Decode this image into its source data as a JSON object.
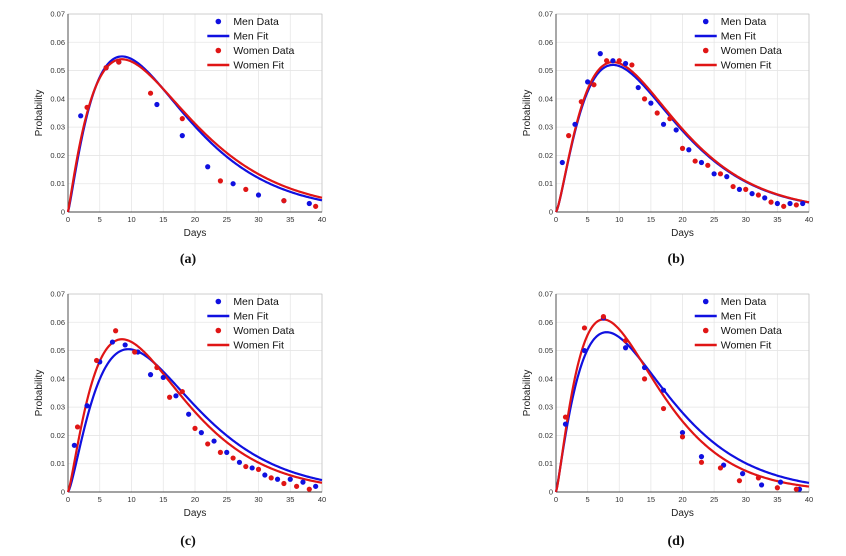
{
  "colors": {
    "men": "#1010e0",
    "women": "#e01515",
    "grid": "#e6e6e6",
    "axis": "#444444"
  },
  "chart_data": [
    {
      "type": "line",
      "panel": "(a)",
      "xlabel": "Days",
      "ylabel": "Probability",
      "xlim": [
        0,
        40
      ],
      "ylim": [
        0,
        0.07
      ],
      "xticks": [
        "0",
        "5",
        "10",
        "15",
        "20",
        "25",
        "30",
        "35",
        "40"
      ],
      "yticks": [
        "0",
        "0.01",
        "0.02",
        "0.03",
        "0.04",
        "0.05",
        "0.06",
        "0.07"
      ],
      "legend": [
        "Men Data",
        "Men Fit",
        "Women Data",
        "Women Fit"
      ],
      "legend_position": "top-right",
      "grid": true,
      "series": [
        {
          "name": "Men Data",
          "kind": "scatter",
          "x": [
            2,
            6,
            8,
            14,
            18,
            22,
            26,
            30,
            34,
            38
          ],
          "y": [
            0.034,
            0.051,
            0.053,
            0.038,
            0.027,
            0.016,
            0.01,
            0.006,
            0.004,
            0.003
          ]
        },
        {
          "name": "Women Data",
          "kind": "scatter",
          "x": [
            3,
            6,
            8,
            13,
            18,
            24,
            28,
            34,
            39
          ],
          "y": [
            0.037,
            0.051,
            0.053,
            0.042,
            0.033,
            0.011,
            0.008,
            0.004,
            0.002
          ]
        },
        {
          "name": "Men Fit",
          "kind": "fit",
          "peak_x": 8.5,
          "peak_y": 0.055,
          "shape": 2.2,
          "shift": 0
        },
        {
          "name": "Women Fit",
          "kind": "fit",
          "peak_x": 8.5,
          "peak_y": 0.054,
          "shape": 2.1,
          "shift": 0
        }
      ]
    },
    {
      "type": "line",
      "panel": "(b)",
      "xlabel": "Days",
      "ylabel": "Probability",
      "xlim": [
        0,
        40
      ],
      "ylim": [
        0,
        0.07
      ],
      "xticks": [
        "0",
        "5",
        "10",
        "15",
        "20",
        "25",
        "30",
        "35",
        "40"
      ],
      "yticks": [
        "0",
        "0.01",
        "0.02",
        "0.03",
        "0.04",
        "0.05",
        "0.06",
        "0.07"
      ],
      "legend": [
        "Men Data",
        "Men Fit",
        "Women Data",
        "Women Fit"
      ],
      "legend_position": "top-right",
      "grid": true,
      "series": [
        {
          "name": "Men Data",
          "kind": "scatter",
          "x": [
            1,
            3,
            5,
            7,
            9,
            11,
            13,
            15,
            17,
            19,
            21,
            23,
            25,
            27,
            29,
            31,
            33,
            35,
            37,
            39
          ],
          "y": [
            0.0175,
            0.031,
            0.046,
            0.056,
            0.0535,
            0.0525,
            0.044,
            0.0385,
            0.031,
            0.029,
            0.022,
            0.0175,
            0.0135,
            0.0125,
            0.008,
            0.0065,
            0.005,
            0.003,
            0.003,
            0.003
          ]
        },
        {
          "name": "Women Data",
          "kind": "scatter",
          "x": [
            2,
            4,
            6,
            8,
            10,
            12,
            14,
            16,
            18,
            20,
            22,
            24,
            26,
            28,
            30,
            32,
            34,
            36,
            38
          ],
          "y": [
            0.027,
            0.039,
            0.045,
            0.0535,
            0.0535,
            0.052,
            0.04,
            0.035,
            0.033,
            0.0225,
            0.018,
            0.0165,
            0.0135,
            0.009,
            0.008,
            0.006,
            0.0035,
            0.002,
            0.0025
          ]
        },
        {
          "name": "Men Fit",
          "kind": "fit",
          "peak_x": 9.0,
          "peak_y": 0.052,
          "shape": 2.4,
          "shift": 0
        },
        {
          "name": "Women Fit",
          "kind": "fit",
          "peak_x": 9.0,
          "peak_y": 0.053,
          "shape": 2.4,
          "shift": 0
        }
      ]
    },
    {
      "type": "line",
      "panel": "(c)",
      "xlabel": "Days",
      "ylabel": "Probability",
      "xlim": [
        0,
        40
      ],
      "ylim": [
        0,
        0.07
      ],
      "xticks": [
        "0",
        "5",
        "10",
        "15",
        "20",
        "25",
        "30",
        "35",
        "40"
      ],
      "yticks": [
        "0",
        "0.01",
        "0.02",
        "0.03",
        "0.04",
        "0.05",
        "0.06",
        "0.07"
      ],
      "legend": [
        "Men Data",
        "Men Fit",
        "Women Data",
        "Women Fit"
      ],
      "legend_position": "top-right",
      "grid": true,
      "series": [
        {
          "name": "Men Data",
          "kind": "scatter",
          "x": [
            1,
            3,
            5,
            7,
            9,
            11,
            13,
            15,
            17,
            19,
            21,
            23,
            25,
            27,
            29,
            31,
            33,
            35,
            37,
            39
          ],
          "y": [
            0.0165,
            0.0305,
            0.046,
            0.053,
            0.052,
            0.0495,
            0.0415,
            0.0405,
            0.034,
            0.0275,
            0.021,
            0.018,
            0.014,
            0.0105,
            0.0085,
            0.006,
            0.0045,
            0.0045,
            0.0035,
            0.002
          ]
        },
        {
          "name": "Women Data",
          "kind": "scatter",
          "x": [
            1.5,
            4.5,
            7.5,
            10.5,
            14,
            16,
            18,
            20,
            22,
            24,
            26,
            28,
            30,
            32,
            34,
            36,
            38
          ],
          "y": [
            0.023,
            0.0465,
            0.057,
            0.0495,
            0.044,
            0.0335,
            0.0355,
            0.0225,
            0.017,
            0.014,
            0.012,
            0.009,
            0.008,
            0.005,
            0.003,
            0.002,
            0.001
          ]
        },
        {
          "name": "Men Fit",
          "kind": "fit",
          "peak_x": 9.5,
          "peak_y": 0.0505,
          "shape": 2.4,
          "shift": 0
        },
        {
          "name": "Women Fit",
          "kind": "fit",
          "peak_x": 8.5,
          "peak_y": 0.054,
          "shape": 2.3,
          "shift": 0
        }
      ]
    },
    {
      "type": "line",
      "panel": "(d)",
      "xlabel": "Days",
      "ylabel": "Probability",
      "xlim": [
        0,
        40
      ],
      "ylim": [
        0,
        0.07
      ],
      "xticks": [
        "0",
        "5",
        "10",
        "15",
        "20",
        "25",
        "30",
        "35",
        "40"
      ],
      "yticks": [
        "0",
        "0.01",
        "0.02",
        "0.03",
        "0.04",
        "0.05",
        "0.06",
        "0.07"
      ],
      "legend": [
        "Men Data",
        "Men Fit",
        "Women Data",
        "Women Fit"
      ],
      "legend_position": "top-right",
      "grid": true,
      "series": [
        {
          "name": "Men Data",
          "kind": "scatter",
          "x": [
            1.5,
            4.5,
            7.5,
            11,
            14,
            17,
            20,
            23,
            26.5,
            29.5,
            32.5,
            35.5,
            38.5
          ],
          "y": [
            0.024,
            0.05,
            0.0615,
            0.051,
            0.044,
            0.036,
            0.021,
            0.0125,
            0.0095,
            0.0065,
            0.0025,
            0.0035,
            0.001
          ]
        },
        {
          "name": "Women Data",
          "kind": "scatter",
          "x": [
            1.5,
            4.5,
            7.5,
            11,
            14,
            17,
            20,
            23,
            26,
            29,
            32,
            35,
            38
          ],
          "y": [
            0.0265,
            0.058,
            0.062,
            0.0535,
            0.04,
            0.0295,
            0.0195,
            0.0105,
            0.0085,
            0.004,
            0.005,
            0.0015,
            0.001
          ]
        },
        {
          "name": "Men Fit",
          "kind": "fit",
          "peak_x": 8.0,
          "peak_y": 0.0565,
          "shape": 2.2,
          "shift": 0
        },
        {
          "name": "Women Fit",
          "kind": "fit",
          "peak_x": 7.5,
          "peak_y": 0.061,
          "shape": 2.3,
          "shift": 0
        }
      ]
    }
  ]
}
